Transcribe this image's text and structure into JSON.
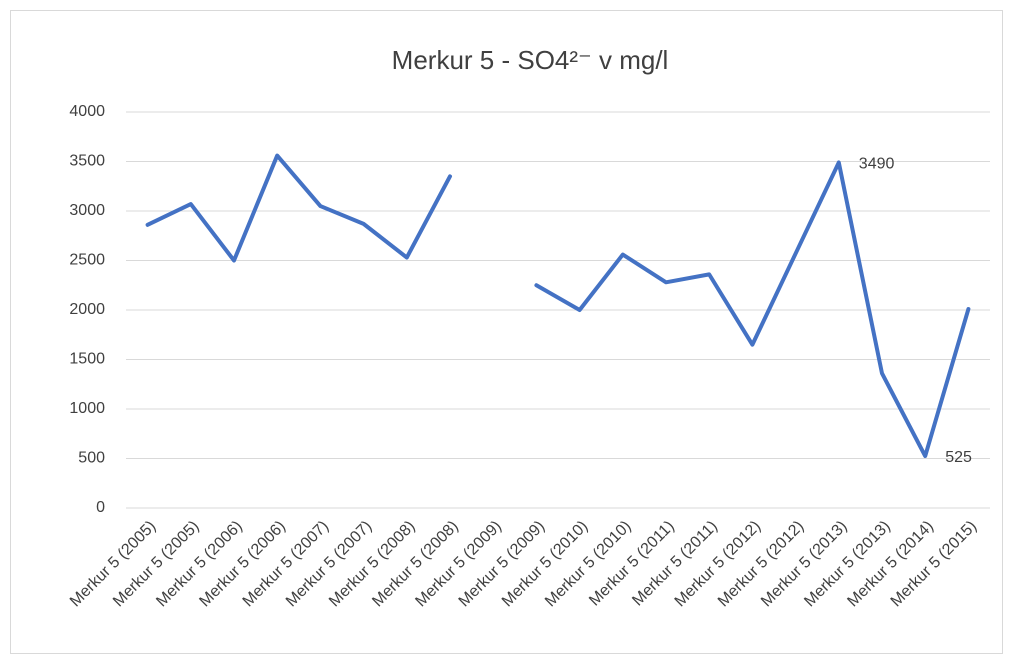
{
  "chart_data": {
    "type": "line",
    "title": "Merkur 5 - SO4²⁻ v mg/l",
    "categories": [
      "Merkur 5 (2005)",
      "Merkur 5 (2005)",
      "Merkur 5 (2006)",
      "Merkur 5 (2006)",
      "Merkur 5 (2007)",
      "Merkur 5 (2007)",
      "Merkur 5 (2008)",
      "Merkur 5 (2008)",
      "Merkur 5 (2009)",
      "Merkur 5 (2009)",
      "Merkur 5 (2010)",
      "Merkur 5 (2010)",
      "Merkur 5 (2011)",
      "Merkur 5 (2011)",
      "Merkur 5 (2012)",
      "Merkur 5 (2012)",
      "Merkur 5 (2013)",
      "Merkur 5 (2013)",
      "Merkur 5 (2014)",
      "Merkur 5 (2015)"
    ],
    "values": [
      2860,
      3070,
      2500,
      3560,
      3050,
      2870,
      2530,
      3350,
      null,
      2250,
      2000,
      2560,
      2280,
      2360,
      1650,
      2570,
      3490,
      1360,
      525,
      2010
    ],
    "value_labels": [
      null,
      null,
      null,
      null,
      null,
      null,
      null,
      null,
      null,
      null,
      null,
      null,
      null,
      null,
      null,
      null,
      "3490",
      null,
      "525",
      null
    ],
    "color": "#4472c4",
    "ylim": [
      0,
      4000
    ],
    "yticks": [
      0,
      500,
      1000,
      1500,
      2000,
      2500,
      3000,
      3500,
      4000
    ],
    "grid": true
  }
}
